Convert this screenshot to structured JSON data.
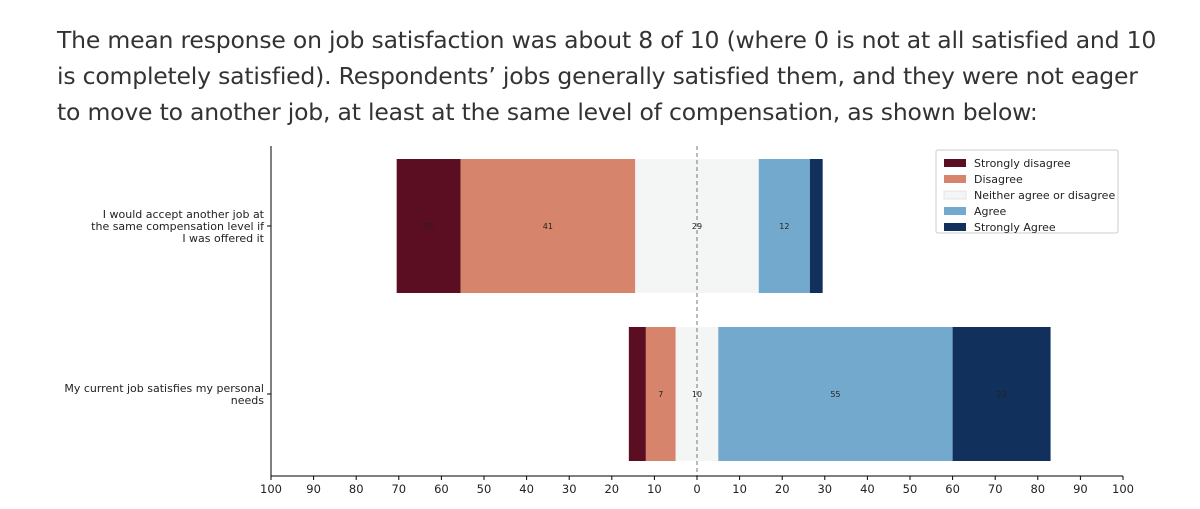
{
  "intro_text": "The mean response on job satisfaction was about 8 of 10 (where 0 is not at all satisfied and 10 is completely satisfied). Respondents’ jobs generally satisfied them, and they were not eager to move to another job, at least at the same level of compensation, as shown below:",
  "chart_data": {
    "type": "bar",
    "orientation": "horizontal-diverging-stacked",
    "categories": [
      "I would accept another job at the same compensation level if I was offered it",
      "My current job satisfies my personal needs"
    ],
    "category_label_lines": [
      [
        "I would accept another job at",
        "the same compensation level if",
        "I was offered it"
      ],
      [
        "My current job satisfies my personal",
        "needs"
      ]
    ],
    "series": [
      {
        "name": "Strongly disagree",
        "color": "#5b0e21",
        "values": [
          15,
          4
        ]
      },
      {
        "name": "Disagree",
        "color": "#d6846c",
        "values": [
          41,
          7
        ]
      },
      {
        "name": "Neither agree or disagree",
        "color": "#f4f5f5",
        "values": [
          29,
          10
        ]
      },
      {
        "name": "Agree",
        "color": "#74a9ce",
        "values": [
          12,
          55
        ]
      },
      {
        "name": "Strongly Agree",
        "color": "#11305c",
        "values": [
          3,
          23
        ]
      }
    ],
    "labeled_segments": [
      [
        true,
        true,
        true,
        true,
        false
      ],
      [
        false,
        true,
        true,
        true,
        true
      ]
    ],
    "xlim": [
      -100,
      100
    ],
    "xticks": [
      -100,
      -90,
      -80,
      -70,
      -60,
      -50,
      -40,
      -30,
      -20,
      -10,
      0,
      10,
      20,
      30,
      40,
      50,
      60,
      70,
      80,
      90,
      100
    ],
    "xtick_labels": [
      "100",
      "90",
      "80",
      "70",
      "60",
      "50",
      "40",
      "30",
      "20",
      "10",
      "0",
      "10",
      "20",
      "30",
      "40",
      "50",
      "60",
      "70",
      "80",
      "90",
      "100"
    ],
    "center_line": 0,
    "legend_position": "top-right"
  }
}
